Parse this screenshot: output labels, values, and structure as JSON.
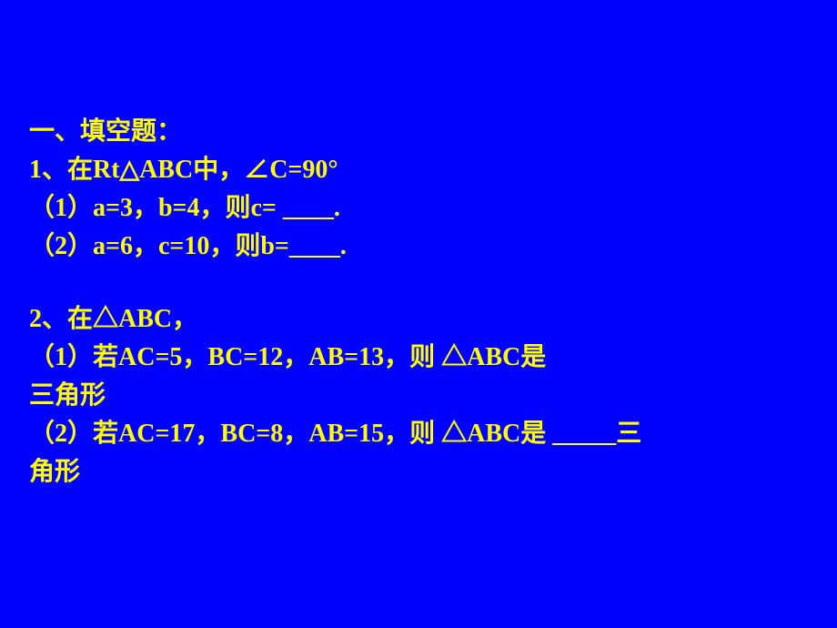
{
  "background_color": "#0000ff",
  "text_color": "#ffff00",
  "font_size": 28,
  "font_weight": "bold",
  "section1": {
    "heading": "一、填空题：",
    "q1": {
      "stem": "1、在Rt△ABC中，∠C=90°",
      "part1": "（1）a=3，b=4，则c= ____.",
      "part2": "（2）a=6，c=10，则b=____."
    },
    "q2": {
      "stem": "2、在△ABC，",
      "part1_a": "（1）若AC=5，BC=12，AB=13，则 △ABC是",
      "part1_b": "三角形",
      "part2_a": "（2）若AC=17，BC=8，AB=15，则 △ABC是 _____三",
      "part2_b": "角形"
    }
  }
}
